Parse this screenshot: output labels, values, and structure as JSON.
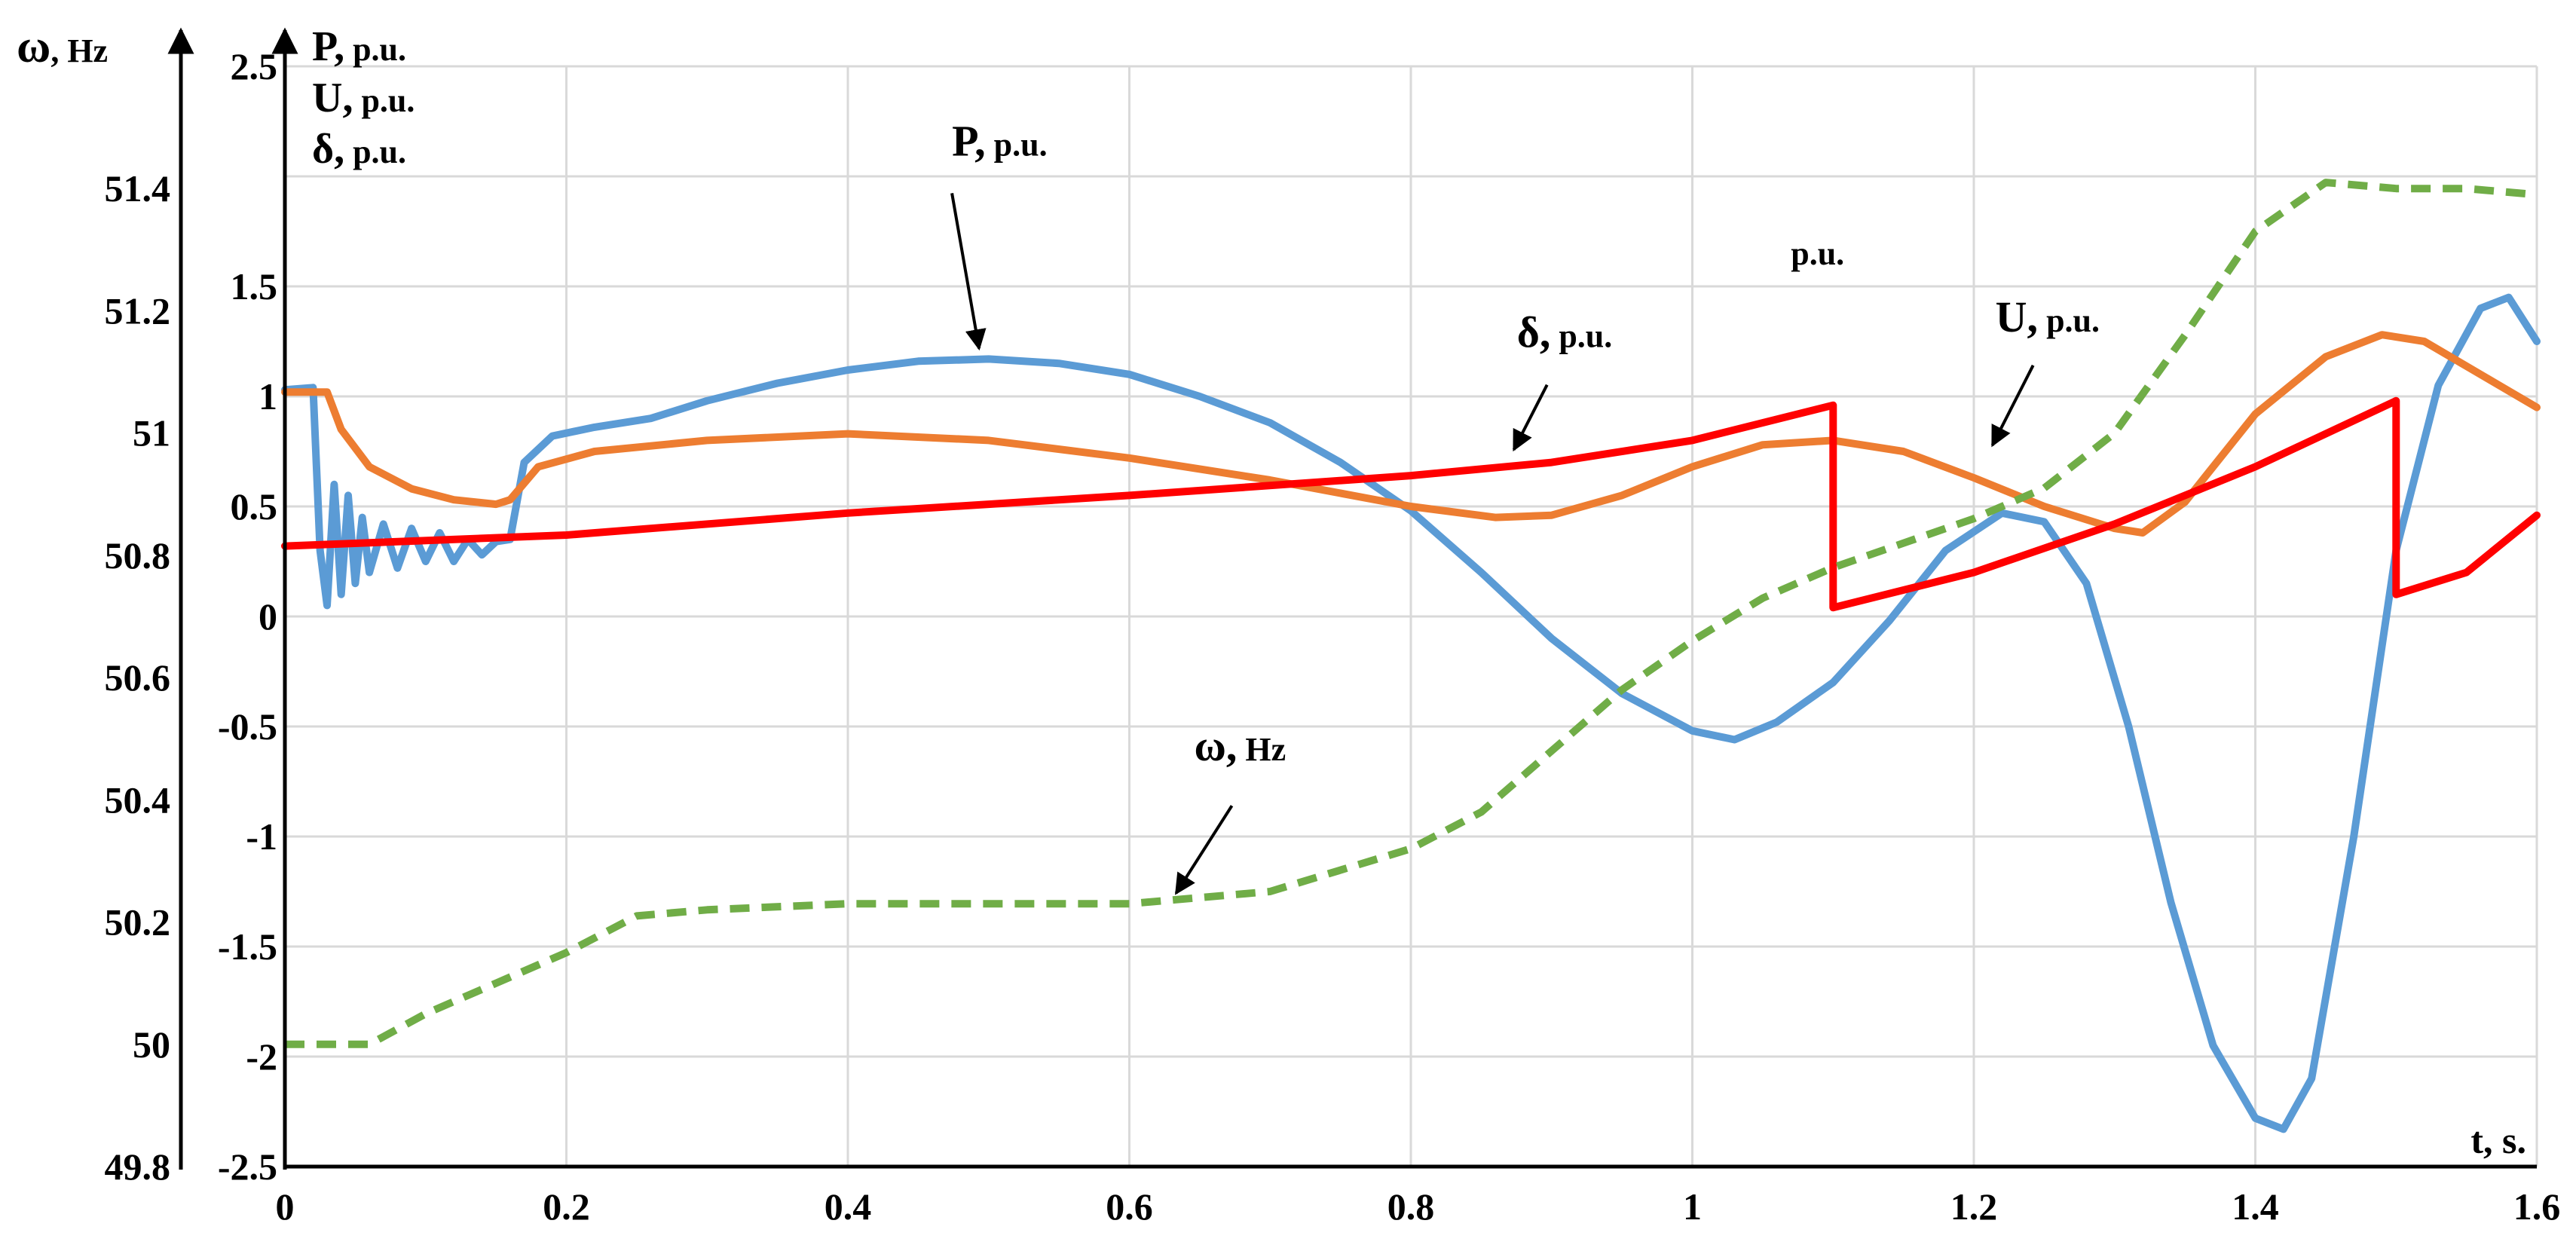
{
  "chart_data": {
    "type": "line",
    "x_axis": {
      "label": "t, s.",
      "range": [
        0,
        1.6
      ],
      "ticks": [
        "0",
        "0.2",
        "0.4",
        "0.6",
        "0.8",
        "1",
        "1.2",
        "1.4",
        "1.6"
      ]
    },
    "y_axis_left_outer": {
      "label_symbol": "ω",
      "label_unit": "Hz",
      "range": [
        49.8,
        51.6
      ],
      "ticks": [
        "49.8",
        "50",
        "50.2",
        "50.4",
        "50.6",
        "50.8",
        "51",
        "51.2",
        "51.4"
      ]
    },
    "y_axis_left_inner": {
      "labels": [
        "P, p.u.",
        "U, p.u.",
        "δ, p.u."
      ],
      "range": [
        -2.5,
        2.5
      ],
      "ticks": [
        "-2.5",
        "-2",
        "-1.5",
        "-1",
        "-0.5",
        "0",
        "0.5",
        "1",
        "1.5",
        "2.5"
      ]
    },
    "grid": true,
    "series": [
      {
        "name": "P, p.u.",
        "axis": "pu",
        "color": "#5b9bd5",
        "dashed": false,
        "points": [
          [
            0,
            1.03
          ],
          [
            0.02,
            1.04
          ],
          [
            0.025,
            0.3
          ],
          [
            0.03,
            0.05
          ],
          [
            0.035,
            0.6
          ],
          [
            0.04,
            0.1
          ],
          [
            0.045,
            0.55
          ],
          [
            0.05,
            0.15
          ],
          [
            0.055,
            0.45
          ],
          [
            0.06,
            0.2
          ],
          [
            0.07,
            0.42
          ],
          [
            0.08,
            0.22
          ],
          [
            0.09,
            0.4
          ],
          [
            0.1,
            0.25
          ],
          [
            0.11,
            0.38
          ],
          [
            0.12,
            0.25
          ],
          [
            0.13,
            0.35
          ],
          [
            0.14,
            0.28
          ],
          [
            0.15,
            0.34
          ],
          [
            0.16,
            0.35
          ],
          [
            0.17,
            0.7
          ],
          [
            0.19,
            0.82
          ],
          [
            0.22,
            0.86
          ],
          [
            0.26,
            0.9
          ],
          [
            0.3,
            0.98
          ],
          [
            0.35,
            1.06
          ],
          [
            0.4,
            1.12
          ],
          [
            0.45,
            1.16
          ],
          [
            0.5,
            1.17
          ],
          [
            0.55,
            1.15
          ],
          [
            0.6,
            1.1
          ],
          [
            0.65,
            1.0
          ],
          [
            0.7,
            0.88
          ],
          [
            0.75,
            0.7
          ],
          [
            0.8,
            0.48
          ],
          [
            0.85,
            0.2
          ],
          [
            0.9,
            -0.1
          ],
          [
            0.95,
            -0.35
          ],
          [
            1.0,
            -0.52
          ],
          [
            1.03,
            -0.56
          ],
          [
            1.06,
            -0.48
          ],
          [
            1.1,
            -0.3
          ],
          [
            1.14,
            -0.02
          ],
          [
            1.18,
            0.3
          ],
          [
            1.22,
            0.47
          ],
          [
            1.25,
            0.43
          ],
          [
            1.28,
            0.15
          ],
          [
            1.31,
            -0.5
          ],
          [
            1.34,
            -1.3
          ],
          [
            1.37,
            -1.95
          ],
          [
            1.4,
            -2.28
          ],
          [
            1.42,
            -2.33
          ],
          [
            1.44,
            -2.1
          ],
          [
            1.47,
            -1.0
          ],
          [
            1.5,
            0.3
          ],
          [
            1.53,
            1.05
          ],
          [
            1.56,
            1.4
          ],
          [
            1.58,
            1.45
          ],
          [
            1.6,
            1.25
          ]
        ]
      },
      {
        "name": "U, p.u.",
        "axis": "pu",
        "color": "#ed7d31",
        "dashed": false,
        "points": [
          [
            0,
            1.02
          ],
          [
            0.03,
            1.02
          ],
          [
            0.04,
            0.85
          ],
          [
            0.06,
            0.68
          ],
          [
            0.09,
            0.58
          ],
          [
            0.12,
            0.53
          ],
          [
            0.15,
            0.51
          ],
          [
            0.16,
            0.53
          ],
          [
            0.18,
            0.68
          ],
          [
            0.22,
            0.75
          ],
          [
            0.3,
            0.8
          ],
          [
            0.4,
            0.83
          ],
          [
            0.5,
            0.8
          ],
          [
            0.6,
            0.72
          ],
          [
            0.7,
            0.62
          ],
          [
            0.8,
            0.5
          ],
          [
            0.86,
            0.45
          ],
          [
            0.9,
            0.46
          ],
          [
            0.95,
            0.55
          ],
          [
            1.0,
            0.68
          ],
          [
            1.05,
            0.78
          ],
          [
            1.1,
            0.8
          ],
          [
            1.15,
            0.75
          ],
          [
            1.2,
            0.63
          ],
          [
            1.25,
            0.5
          ],
          [
            1.3,
            0.4
          ],
          [
            1.32,
            0.38
          ],
          [
            1.35,
            0.52
          ],
          [
            1.4,
            0.92
          ],
          [
            1.45,
            1.18
          ],
          [
            1.49,
            1.28
          ],
          [
            1.52,
            1.25
          ],
          [
            1.56,
            1.1
          ],
          [
            1.6,
            0.95
          ]
        ]
      },
      {
        "name": "δ, p.u.",
        "axis": "pu",
        "color": "#ff0000",
        "dashed": false,
        "points": [
          [
            0,
            0.32
          ],
          [
            0.2,
            0.37
          ],
          [
            0.4,
            0.47
          ],
          [
            0.6,
            0.55
          ],
          [
            0.8,
            0.64
          ],
          [
            0.9,
            0.7
          ],
          [
            1.0,
            0.8
          ],
          [
            1.1,
            0.96
          ],
          [
            1.1,
            0.04
          ],
          [
            1.2,
            0.2
          ],
          [
            1.3,
            0.42
          ],
          [
            1.4,
            0.68
          ],
          [
            1.5,
            0.98
          ],
          [
            1.5,
            0.1
          ],
          [
            1.55,
            0.2
          ],
          [
            1.6,
            0.46
          ]
        ]
      },
      {
        "name": "ω, Hz",
        "axis": "hz",
        "color": "#70ad47",
        "dashed": true,
        "points": [
          [
            0,
            50.0
          ],
          [
            0.06,
            50.0
          ],
          [
            0.1,
            50.05
          ],
          [
            0.15,
            50.1
          ],
          [
            0.2,
            50.15
          ],
          [
            0.25,
            50.21
          ],
          [
            0.3,
            50.22
          ],
          [
            0.4,
            50.23
          ],
          [
            0.5,
            50.23
          ],
          [
            0.6,
            50.23
          ],
          [
            0.7,
            50.25
          ],
          [
            0.8,
            50.32
          ],
          [
            0.85,
            50.38
          ],
          [
            0.9,
            50.48
          ],
          [
            0.95,
            50.58
          ],
          [
            1.0,
            50.66
          ],
          [
            1.05,
            50.73
          ],
          [
            1.1,
            50.78
          ],
          [
            1.15,
            50.82
          ],
          [
            1.2,
            50.86
          ],
          [
            1.25,
            50.91
          ],
          [
            1.3,
            51.0
          ],
          [
            1.35,
            51.16
          ],
          [
            1.4,
            51.33
          ],
          [
            1.45,
            51.41
          ],
          [
            1.5,
            51.4
          ],
          [
            1.55,
            51.4
          ],
          [
            1.6,
            51.39
          ]
        ]
      }
    ],
    "annotations": [
      {
        "text": "P, p.u.",
        "x": 0.49,
        "y": 1.17,
        "axis": "pu"
      },
      {
        "text": "δ, p.u.",
        "x": 0.87,
        "y": 0.71,
        "axis": "pu"
      },
      {
        "text": "U, p.u.",
        "x": 1.21,
        "y": 0.73,
        "axis": "pu"
      },
      {
        "text": "ω, Hz",
        "x": 0.63,
        "y": 50.23,
        "axis": "hz"
      },
      {
        "text": "p.u.",
        "x": 1.07,
        "y": 1.6,
        "axis": "pu",
        "arrow": false
      }
    ]
  }
}
